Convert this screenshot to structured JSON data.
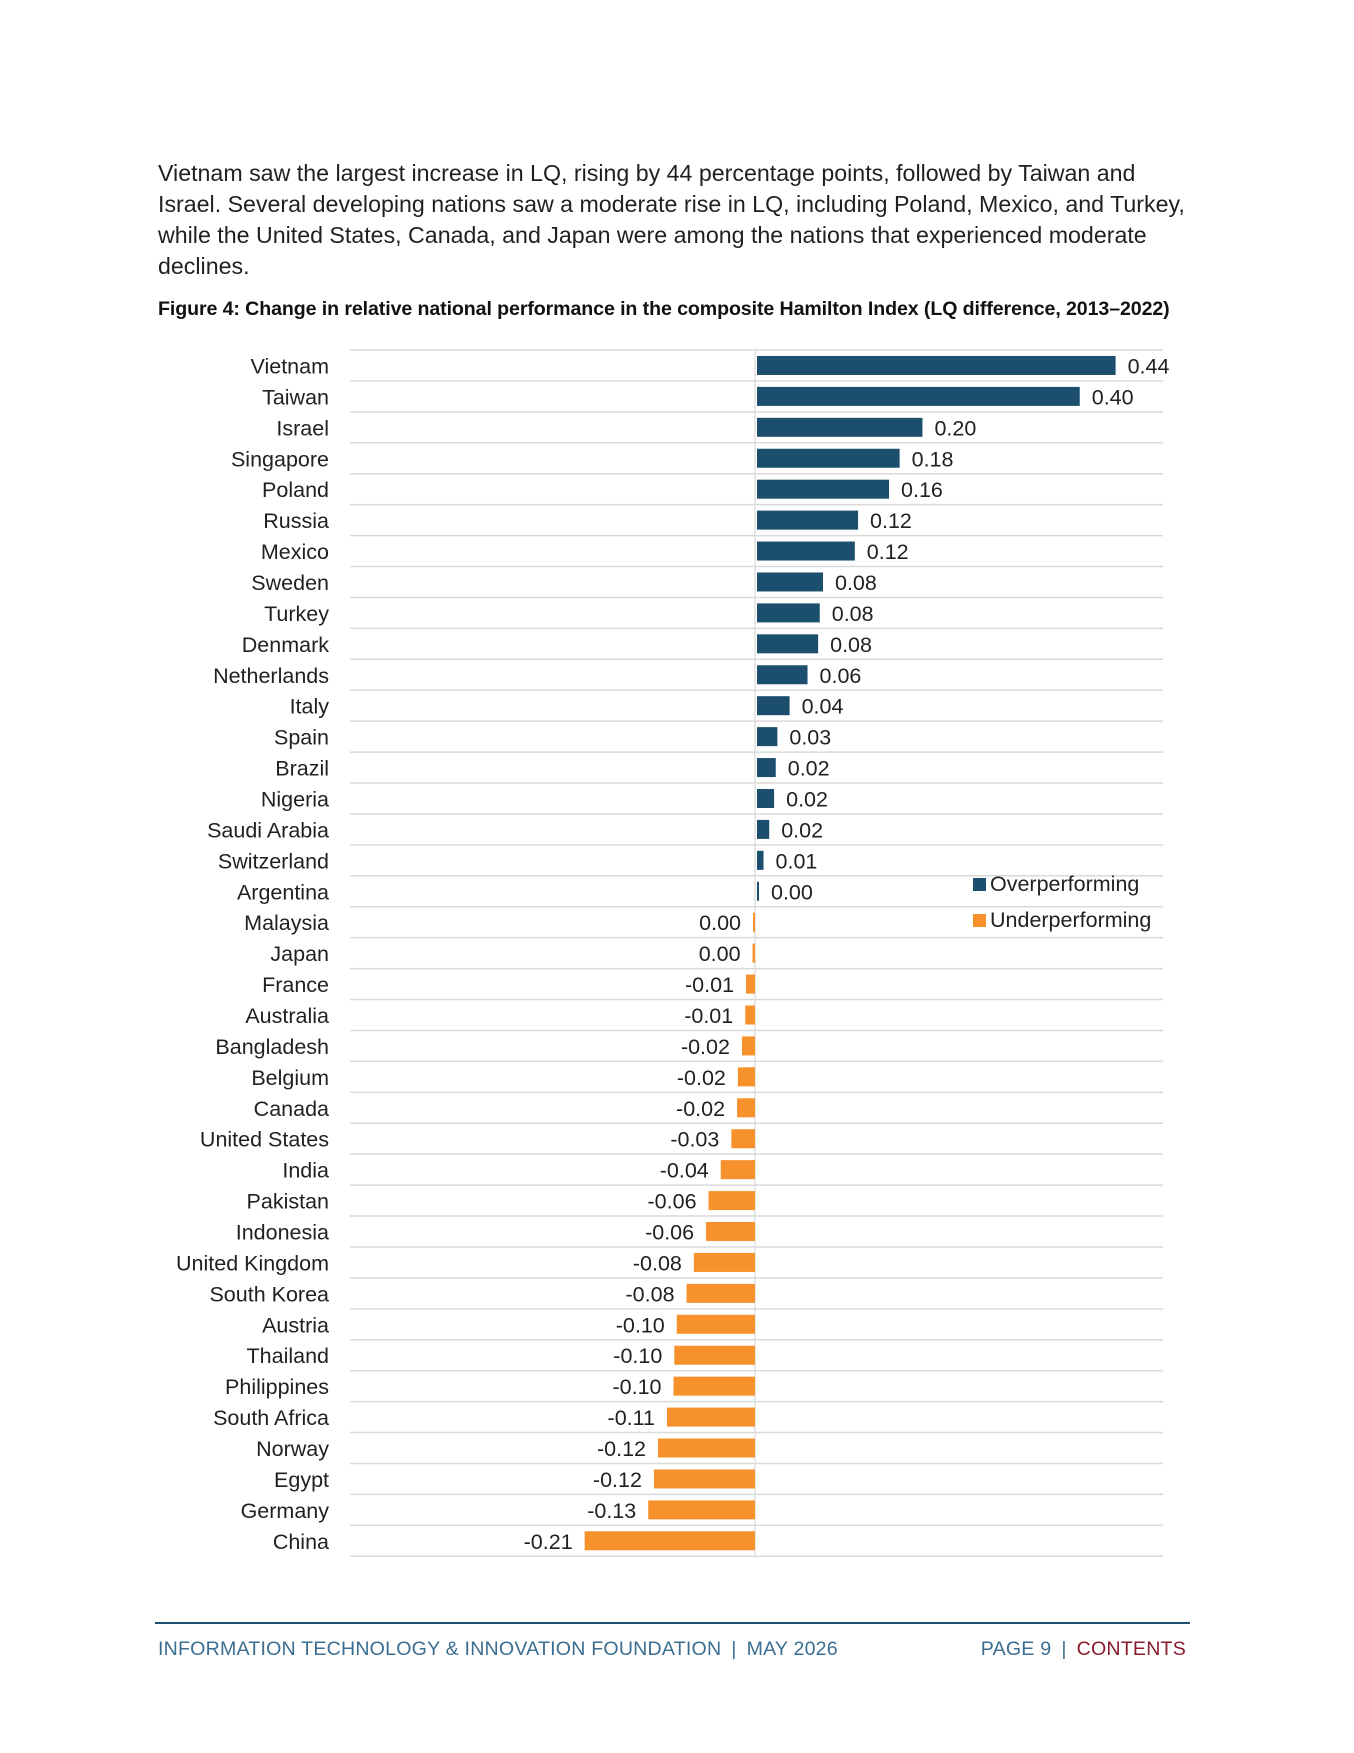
{
  "intro_text": "Vietnam saw the largest increase in LQ, rising by 44 percentage points, followed by Taiwan and Israel. Several developing nations saw a moderate rise in LQ, including Poland, Mexico, and Turkey, while the United States, Canada, and Japan were among the nations that experienced moderate declines.",
  "figure_title": "Figure 4: Change in relative national performance in the composite Hamilton Index (LQ difference, 2013–2022)",
  "chart_data": {
    "type": "bar",
    "orientation": "horizontal",
    "title": "Figure 4: Change in relative national performance in the composite Hamilton Index (LQ difference, 2013–2022)",
    "xlim": [
      -0.22,
      0.44
    ],
    "grid": true,
    "legend_position": "middle-right",
    "colors": {
      "over": "#1c4f6d",
      "under": "#f7912b"
    },
    "legend": [
      "Overperforming",
      "Underperforming"
    ],
    "categories": [
      "Vietnam",
      "Taiwan",
      "Israel",
      "Singapore",
      "Poland",
      "Russia",
      "Mexico",
      "Sweden",
      "Turkey",
      "Denmark",
      "Netherlands",
      "Italy",
      "Spain",
      "Brazil",
      "Nigeria",
      "Saudi Arabia",
      "Switzerland",
      "Argentina",
      "Malaysia",
      "Japan",
      "France",
      "Australia",
      "Bangladesh",
      "Belgium",
      "Canada",
      "United States",
      "India",
      "Pakistan",
      "Indonesia",
      "United Kingdom",
      "South Korea",
      "Austria",
      "Thailand",
      "Philippines",
      "South Africa",
      "Norway",
      "Egypt",
      "Germany",
      "China"
    ],
    "values": [
      0.44,
      0.396,
      0.203,
      0.175,
      0.162,
      0.124,
      0.12,
      0.081,
      0.077,
      0.075,
      0.062,
      0.04,
      0.025,
      0.023,
      0.021,
      0.015,
      0.008,
      0.002,
      -0.002,
      -0.003,
      -0.011,
      -0.012,
      -0.016,
      -0.021,
      -0.022,
      -0.029,
      -0.042,
      -0.057,
      -0.06,
      -0.075,
      -0.084,
      -0.096,
      -0.099,
      -0.1,
      -0.108,
      -0.119,
      -0.124,
      -0.131,
      -0.209
    ],
    "labels": [
      "0.44",
      "0.40",
      "0.20",
      "0.18",
      "0.16",
      "0.12",
      "0.12",
      "0.08",
      "0.08",
      "0.08",
      "0.06",
      "0.04",
      "0.03",
      "0.02",
      "0.02",
      "0.02",
      "0.01",
      "0.00",
      "0.00",
      "0.00",
      "-0.01",
      "-0.01",
      "-0.02",
      "-0.02",
      "-0.02",
      "-0.03",
      "-0.04",
      "-0.06",
      "-0.06",
      "-0.08",
      "-0.08",
      "-0.10",
      "-0.10",
      "-0.10",
      "-0.11",
      "-0.12",
      "-0.12",
      "-0.13",
      "-0.21"
    ]
  },
  "legend": {
    "over_label": "Overperforming",
    "under_label": "Underperforming"
  },
  "footer": {
    "org": "INFORMATION TECHNOLOGY & INNOVATION FOUNDATION",
    "separator": "|",
    "date": "MAY 2026",
    "page": "PAGE 9",
    "contents": "CONTENTS"
  }
}
